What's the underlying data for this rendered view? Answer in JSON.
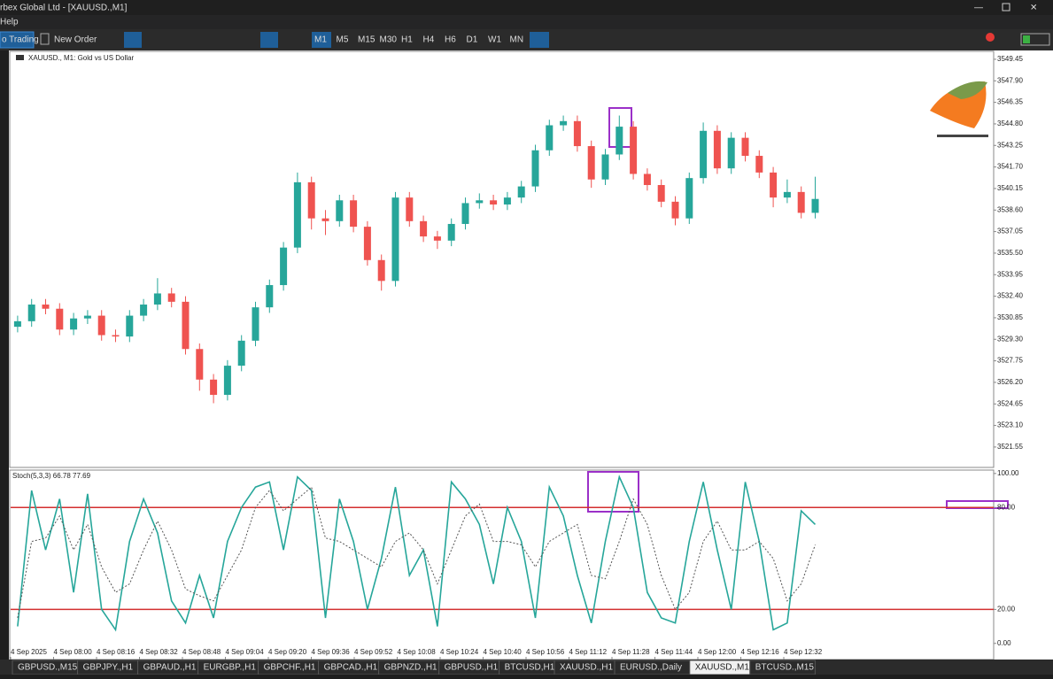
{
  "window": {
    "title": "rbex Global Ltd - [XAUUSD.,M1]",
    "menu": [
      "Help"
    ]
  },
  "toolbar": {
    "algo": "o Trading",
    "new_order": "New Order",
    "timeframes": [
      "M1",
      "M5",
      "M15",
      "M30",
      "H1",
      "H4",
      "H6",
      "D1",
      "W1",
      "MN"
    ]
  },
  "tabs": [
    "GBPUSD.,M15",
    "GBPJPY.,H1",
    "GBPAUD.,H1",
    "EURGBP.,H1",
    "GBPCHF.,H1",
    "GBPCAD.,H1",
    "GBPNZD.,H1",
    "GBPUSD.,H1",
    "BTCUSD,H1",
    "XAUUSD.,H1",
    "EURUSD.,Daily",
    "XAUUSD.,M1",
    "BTCUSD.,M15"
  ],
  "chart_data": [
    {
      "type": "candlestick",
      "title": "XAUUSD., M1:  Gold vs US Dollar",
      "up_color": "#26a69a",
      "down_color": "#ef5350",
      "open": [
        3530.2,
        3530.6,
        3531.8,
        3531.5,
        3530.0,
        3530.8,
        3531.0,
        3529.6,
        3529.5,
        3531.0,
        3531.8,
        3532.6,
        3532.0,
        3528.6,
        3526.4,
        3525.3,
        3527.4,
        3529.2,
        3531.6,
        3533.2,
        3535.9,
        3540.6,
        3538.0,
        3537.8,
        3539.3,
        3537.4,
        3535.0,
        3533.5,
        3539.5,
        3537.8,
        3536.7,
        3536.4,
        3537.6,
        3539.1,
        3539.3,
        3539.0,
        3539.5,
        3540.3,
        3542.9,
        3544.7,
        3545.0,
        3543.2,
        3540.8,
        3542.6,
        3544.6,
        3541.2,
        3540.4,
        3539.2,
        3538.0,
        3540.9,
        3544.3,
        3541.6,
        3543.8,
        3542.5,
        3541.3,
        3539.5,
        3539.9,
        3538.4
      ],
      "high": [
        3531.0,
        3532.2,
        3532.2,
        3531.9,
        3531.2,
        3531.4,
        3531.4,
        3530.0,
        3531.4,
        3532.2,
        3533.7,
        3533.0,
        3532.4,
        3529.0,
        3526.8,
        3527.8,
        3529.6,
        3532.0,
        3533.6,
        3536.3,
        3541.3,
        3541.0,
        3538.6,
        3539.7,
        3539.7,
        3537.8,
        3535.4,
        3539.9,
        3539.9,
        3538.2,
        3537.1,
        3538.0,
        3539.5,
        3539.8,
        3539.7,
        3539.9,
        3540.7,
        3543.3,
        3545.1,
        3545.4,
        3545.4,
        3543.6,
        3543.0,
        3545.4,
        3545.0,
        3541.6,
        3540.8,
        3539.6,
        3541.3,
        3544.9,
        3544.7,
        3544.2,
        3544.2,
        3542.9,
        3541.7,
        3540.8,
        3540.3,
        3541.0
      ],
      "low": [
        3529.8,
        3530.2,
        3531.1,
        3529.6,
        3529.6,
        3530.4,
        3529.2,
        3529.1,
        3529.1,
        3530.6,
        3531.4,
        3531.6,
        3528.2,
        3525.6,
        3524.7,
        3524.9,
        3527.0,
        3528.8,
        3531.2,
        3532.8,
        3535.5,
        3537.2,
        3536.8,
        3537.4,
        3537.0,
        3534.6,
        3532.8,
        3533.1,
        3537.4,
        3536.3,
        3535.8,
        3536.0,
        3537.2,
        3538.7,
        3538.6,
        3538.6,
        3539.1,
        3539.9,
        3542.5,
        3544.3,
        3542.8,
        3540.2,
        3540.4,
        3542.2,
        3540.8,
        3540.0,
        3538.8,
        3537.5,
        3537.6,
        3540.5,
        3541.2,
        3541.2,
        3542.1,
        3540.9,
        3538.8,
        3539.1,
        3538.0,
        3538.0
      ],
      "close": [
        3530.6,
        3531.8,
        3531.5,
        3530.0,
        3530.8,
        3531.0,
        3529.6,
        3529.5,
        3531.0,
        3531.8,
        3532.6,
        3532.0,
        3528.6,
        3526.4,
        3525.3,
        3527.4,
        3529.2,
        3531.6,
        3533.2,
        3535.9,
        3540.6,
        3538.0,
        3537.8,
        3539.3,
        3537.4,
        3535.0,
        3533.5,
        3539.5,
        3537.8,
        3536.7,
        3536.4,
        3537.6,
        3539.1,
        3539.3,
        3539.0,
        3539.5,
        3540.3,
        3542.9,
        3544.7,
        3545.0,
        3543.2,
        3540.8,
        3542.6,
        3544.6,
        3541.2,
        3540.4,
        3539.2,
        3538.0,
        3540.9,
        3544.3,
        3541.6,
        3543.8,
        3542.5,
        3541.3,
        3539.5,
        3539.9,
        3538.4,
        3539.4
      ],
      "ylim": [
        3520.08,
        3550.02
      ],
      "yticks": [
        3549.45,
        {
          "value": 3547.9,
          "label": "3547.90"
        },
        3546.35,
        {
          "value": 3544.8,
          "label": "3544.80"
        },
        3543.25,
        {
          "value": 3541.7,
          "label": "3541.70"
        },
        3540.15,
        {
          "value": 3538.6,
          "label": "3538.60"
        },
        3537.05,
        {
          "value": 3535.5,
          "label": "3535.50"
        },
        3533.95,
        {
          "value": 3532.4,
          "label": "3532.40"
        },
        3530.85,
        {
          "value": 3529.3,
          "label": "3529.30"
        },
        3527.75,
        {
          "value": 3526.2,
          "label": "3526.20"
        },
        3524.65,
        {
          "value": 3523.1,
          "label": "3523.10"
        },
        3521.55
      ]
    },
    {
      "type": "line",
      "title": "Stoch(5,3,3) 66.78 77.69",
      "ylim": [
        -9.5,
        102
      ],
      "yticks": [
        {
          "value": 100,
          "label": "100.00"
        },
        {
          "value": 80,
          "label": "80.00"
        },
        {
          "value": 20,
          "label": "20.00"
        },
        {
          "value": 0,
          "label": "0.00"
        }
      ],
      "levels": [
        80,
        20
      ],
      "level_color": "#d32f2f",
      "x_labels": [
        "4 Sep 2025",
        "4 Sep 08:00",
        "4 Sep 08:16",
        "4 Sep 08:32",
        "4 Sep 08:48",
        "4 Sep 09:04",
        "4 Sep 09:20",
        "4 Sep 09:36",
        "4 Sep 09:52",
        "4 Sep 10:08",
        "4 Sep 10:24",
        "4 Sep 10:40",
        "4 Sep 10:56",
        "4 Sep 11:12",
        "4 Sep 11:28",
        "4 Sep 11:44",
        "4 Sep 12:00",
        "4 Sep 12:16",
        "4 Sep 12:32"
      ],
      "series": [
        {
          "color": "#26a69a",
          "values": [
            10,
            90,
            55,
            85,
            30,
            88,
            20,
            8,
            60,
            85,
            65,
            25,
            12,
            40,
            15,
            60,
            80,
            92,
            95,
            55,
            98,
            90,
            15,
            85,
            60,
            20,
            50,
            92,
            40,
            55,
            10,
            95,
            85,
            70,
            35,
            80,
            60,
            15,
            92,
            75,
            40,
            12,
            60,
            98,
            80,
            30,
            15,
            12,
            60,
            95,
            55,
            20,
            95,
            60,
            8,
            12,
            78,
            70
          ]
        },
        {
          "color": "#555555",
          "values": [
            15,
            60,
            62,
            75,
            55,
            70,
            45,
            30,
            35,
            55,
            72,
            55,
            32,
            28,
            25,
            40,
            55,
            80,
            90,
            78,
            85,
            92,
            62,
            60,
            55,
            50,
            45,
            60,
            65,
            55,
            35,
            55,
            75,
            82,
            60,
            60,
            58,
            45,
            60,
            65,
            70,
            40,
            38,
            60,
            85,
            70,
            40,
            20,
            30,
            60,
            72,
            55,
            55,
            60,
            50,
            25,
            35,
            58
          ]
        }
      ]
    }
  ]
}
